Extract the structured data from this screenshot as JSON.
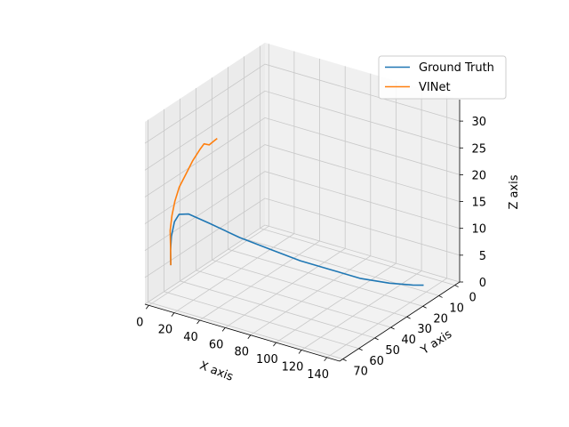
{
  "chart_data": {
    "type": "line",
    "projection": "3d",
    "xlabel": "X axis",
    "ylabel": "Y axis",
    "zlabel": "Z axis",
    "x_ticks": [
      0,
      20,
      40,
      60,
      80,
      100,
      120,
      140
    ],
    "y_ticks": [
      0,
      10,
      20,
      30,
      40,
      50,
      60,
      70
    ],
    "z_ticks": [
      0,
      5,
      10,
      15,
      20,
      25,
      30
    ],
    "xlim": [
      -3,
      150
    ],
    "ylim": [
      -3,
      72
    ],
    "zlim": [
      0,
      34
    ],
    "grid": true,
    "legend_position": "top-right",
    "series": [
      {
        "name": "Ground Truth",
        "color": "#1f77b4",
        "points": [
          [
            1,
            59,
            5
          ],
          [
            2,
            60,
            8
          ],
          [
            4,
            61,
            11
          ],
          [
            7,
            61.5,
            14
          ],
          [
            10,
            61,
            15.5
          ],
          [
            15,
            59,
            15.5
          ],
          [
            25,
            54,
            13.5
          ],
          [
            40,
            47,
            10.5
          ],
          [
            55,
            40,
            8
          ],
          [
            70,
            33,
            5.5
          ],
          [
            85,
            26,
            3.5
          ],
          [
            100,
            19,
            1.5
          ],
          [
            115,
            13,
            0.5
          ],
          [
            127,
            8,
            0
          ],
          [
            133,
            6,
            0
          ]
        ]
      },
      {
        "name": "VINet",
        "color": "#ff7f0e",
        "points": [
          [
            1,
            59,
            5
          ],
          [
            2,
            60,
            9
          ],
          [
            3,
            61,
            12
          ],
          [
            5,
            61.5,
            15
          ],
          [
            8,
            62,
            18
          ],
          [
            12,
            62.5,
            21
          ],
          [
            18,
            63,
            24
          ],
          [
            24,
            63.5,
            27
          ],
          [
            30,
            64,
            29.5
          ],
          [
            34,
            64.5,
            31
          ],
          [
            40,
            66,
            31.5
          ],
          [
            46,
            68,
            33
          ],
          [
            50,
            69,
            34
          ]
        ]
      }
    ]
  }
}
